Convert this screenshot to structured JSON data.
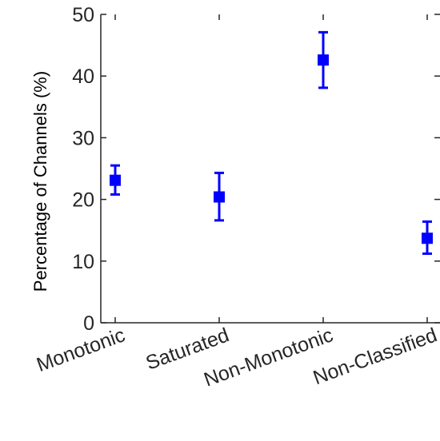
{
  "chart_data": {
    "type": "scatter",
    "title": "",
    "xlabel": "",
    "ylabel": "Percentage of Channels (%)",
    "categories": [
      "Monotonic",
      "Saturated",
      "Non-Monotonic",
      "Non-Classified"
    ],
    "series": [
      {
        "values": [
          23.1,
          20.4,
          42.6,
          13.7
        ],
        "error_low": [
          20.8,
          16.6,
          38.1,
          11.2
        ],
        "error_high": [
          25.5,
          24.3,
          47.1,
          16.4
        ]
      }
    ],
    "ylim": [
      0,
      50
    ],
    "yticks": [
      "0",
      "10",
      "20",
      "30",
      "40",
      "50"
    ],
    "grid": false,
    "marker": "square",
    "color": "#0000ff"
  }
}
